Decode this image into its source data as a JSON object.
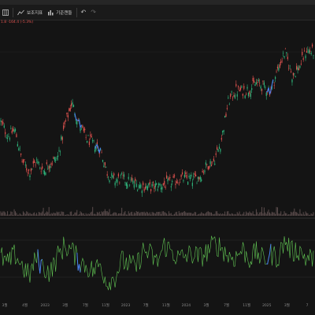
{
  "toolbar": {
    "items": [
      {
        "name": "grid-icon",
        "icon": "grid-icon",
        "label": ""
      },
      {
        "name": "indicator-button",
        "icon": "chart-fx-icon",
        "label": "보조지표"
      },
      {
        "name": "study-button",
        "icon": "bars-icon",
        "label": "기준캔들"
      },
      {
        "name": "undo-button",
        "icon": "undo-icon",
        "label": ""
      },
      {
        "name": "redo-button",
        "icon": "redo-icon",
        "label": ""
      }
    ]
  },
  "legend": {
    "text": "1.8  -164.4 (-5.3%)"
  },
  "x_axis_labels": [
    "3월",
    "4월",
    "2023",
    "3월",
    "7월",
    "11월",
    "2023",
    "7월",
    "11월",
    "2024",
    "3월",
    "7월",
    "11월",
    "2025",
    "3월",
    "7"
  ],
  "colors": {
    "background": "#141414",
    "candle_up": "#2fb67c",
    "candle_down": "#e0534f",
    "trend_line": "#4a7ff0",
    "oscillator": "#62c654",
    "volume": "#6d5a5a"
  },
  "chart_data": {
    "type": "candlestick",
    "series": [
      {
        "values": [
          260,
          242,
          250,
          210,
          196,
          210,
          198,
          208,
          214,
          255,
          285,
          258,
          240,
          232,
          225,
          195,
          185,
          188,
          184,
          180,
          178,
          176,
          178,
          180,
          182,
          186,
          188,
          186,
          190,
          205,
          210,
          235,
          285,
          300,
          300,
          302,
          310,
          305,
          300,
          328,
          350,
          320,
          330,
          352,
          350
        ]
      },
      {
        "values": [
          52,
          40,
          55,
          38,
          22,
          50,
          35,
          28,
          52,
          68,
          60,
          45,
          38,
          30,
          40,
          12,
          20,
          45,
          40,
          35,
          60,
          55,
          42,
          68,
          60,
          48,
          52,
          55,
          50,
          58,
          70,
          66,
          52,
          50,
          62,
          48,
          58,
          45,
          55,
          50,
          75,
          58,
          62,
          48,
          50
        ]
      }
    ]
  }
}
